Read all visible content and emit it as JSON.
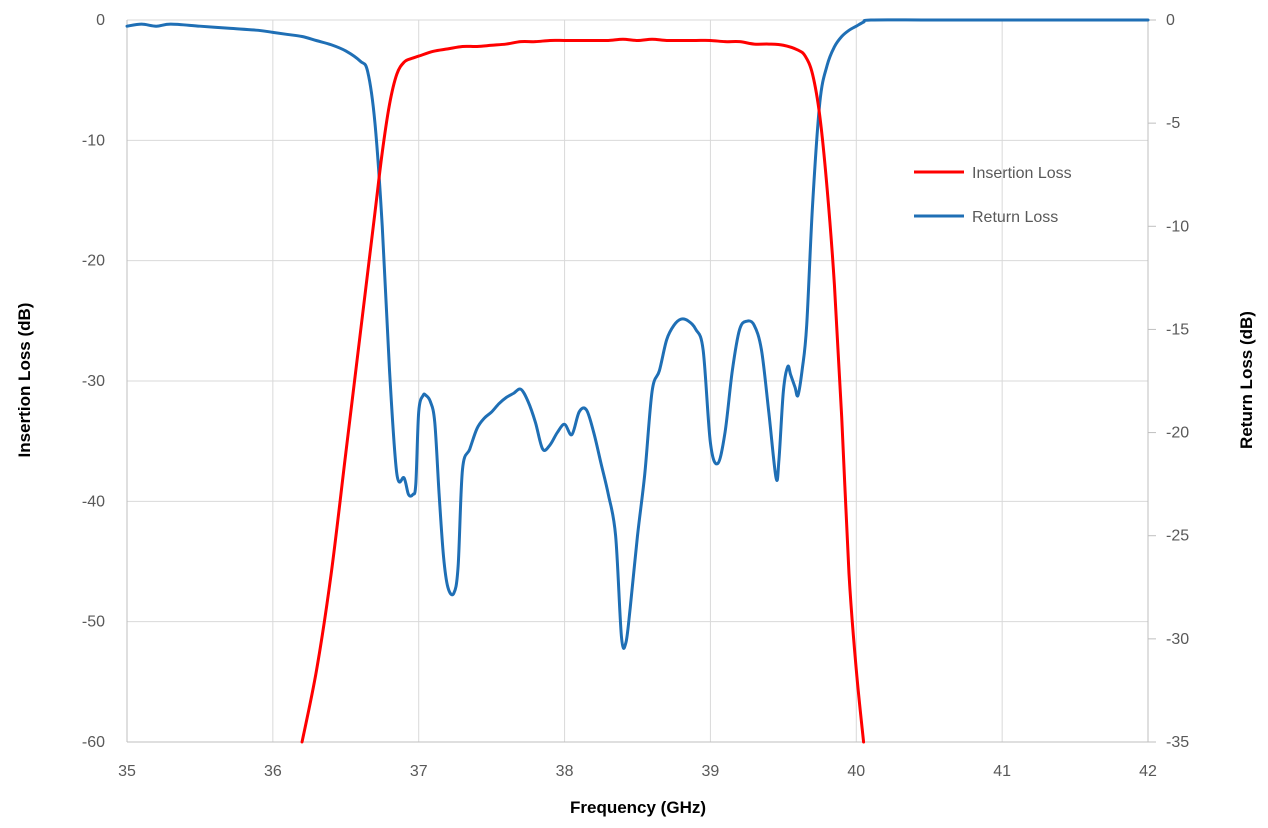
{
  "chart_data": {
    "type": "line",
    "title": "",
    "xlabel": "Frequency (GHz)",
    "ylabel": "Insertion Loss (dB)",
    "y2label": "Return Loss (dB)",
    "xlim": [
      35,
      42
    ],
    "ylim": [
      -60,
      0
    ],
    "y2lim": [
      -35,
      0
    ],
    "x_ticks": [
      "35",
      "36",
      "37",
      "38",
      "39",
      "40",
      "41",
      "42"
    ],
    "y_ticks": [
      "0",
      "-10",
      "-20",
      "-30",
      "-40",
      "-50",
      "-60"
    ],
    "y2_ticks": [
      "0",
      "-5",
      "-10",
      "-15",
      "-20",
      "-25",
      "-30",
      "-35"
    ],
    "grid": true,
    "legend_position": "right",
    "series": [
      {
        "name": "Insertion Loss",
        "axis": "left",
        "color": "#ff0000",
        "x": [
          36.2,
          36.3,
          36.4,
          36.5,
          36.6,
          36.7,
          36.75,
          36.8,
          36.85,
          36.9,
          36.95,
          37.0,
          37.1,
          37.2,
          37.3,
          37.4,
          37.5,
          37.6,
          37.7,
          37.8,
          37.9,
          38.0,
          38.1,
          38.2,
          38.3,
          38.4,
          38.5,
          38.6,
          38.7,
          38.8,
          38.9,
          39.0,
          39.1,
          39.2,
          39.3,
          39.4,
          39.5,
          39.6,
          39.65,
          39.7,
          39.75,
          39.8,
          39.85,
          39.9,
          39.95,
          40.0,
          40.05
        ],
        "values": [
          -60,
          -54,
          -46,
          -36,
          -26,
          -16,
          -11,
          -7,
          -4.5,
          -3.5,
          -3.2,
          -3.0,
          -2.6,
          -2.4,
          -2.2,
          -2.2,
          -2.1,
          -2.0,
          -1.8,
          -1.8,
          -1.7,
          -1.7,
          -1.7,
          -1.7,
          -1.7,
          -1.6,
          -1.7,
          -1.6,
          -1.7,
          -1.7,
          -1.7,
          -1.7,
          -1.8,
          -1.8,
          -2.0,
          -2.0,
          -2.1,
          -2.5,
          -3.0,
          -4.5,
          -8.0,
          -14.0,
          -22.0,
          -33.0,
          -46.0,
          -54.0,
          -60.0
        ]
      },
      {
        "name": "Return Loss",
        "axis": "right",
        "color": "#1f6fb5",
        "x": [
          35.0,
          35.1,
          35.2,
          35.3,
          35.5,
          35.7,
          35.9,
          36.0,
          36.1,
          36.2,
          36.3,
          36.4,
          36.5,
          36.6,
          36.65,
          36.7,
          36.75,
          36.8,
          36.85,
          36.9,
          36.93,
          36.96,
          36.98,
          37.0,
          37.03,
          37.05,
          37.08,
          37.11,
          37.14,
          37.17,
          37.2,
          37.24,
          37.27,
          37.3,
          37.35,
          37.4,
          37.45,
          37.5,
          37.55,
          37.6,
          37.65,
          37.7,
          37.75,
          37.8,
          37.85,
          37.9,
          37.95,
          38.0,
          38.05,
          38.1,
          38.15,
          38.2,
          38.25,
          38.3,
          38.35,
          38.39,
          38.42,
          38.45,
          38.5,
          38.55,
          38.6,
          38.65,
          38.7,
          38.75,
          38.8,
          38.85,
          38.9,
          38.95,
          39.0,
          39.05,
          39.1,
          39.15,
          39.2,
          39.25,
          39.3,
          39.35,
          39.4,
          39.45,
          39.47,
          39.5,
          39.53,
          39.55,
          39.58,
          39.6,
          39.63,
          39.66,
          39.7,
          39.75,
          39.8,
          39.85,
          39.9,
          39.95,
          40.0,
          40.05,
          40.1,
          40.5,
          41.0,
          41.5,
          42.0
        ],
        "values": [
          -0.3,
          -0.2,
          -0.3,
          -0.2,
          -0.3,
          -0.4,
          -0.5,
          -0.6,
          -0.7,
          -0.8,
          -1.0,
          -1.2,
          -1.5,
          -2.0,
          -2.5,
          -5.0,
          -10.0,
          -17.0,
          -22.0,
          -22.2,
          -23.0,
          -23.0,
          -22.5,
          -19.0,
          -18.2,
          -18.2,
          -18.5,
          -19.5,
          -23.0,
          -26.0,
          -27.5,
          -27.8,
          -26.5,
          -21.8,
          -20.8,
          -19.8,
          -19.3,
          -19.0,
          -18.6,
          -18.3,
          -18.1,
          -17.9,
          -18.5,
          -19.5,
          -20.8,
          -20.6,
          -20.0,
          -19.6,
          -20.1,
          -19.0,
          -18.9,
          -20.0,
          -21.5,
          -23.0,
          -25.0,
          -29.9,
          -30.2,
          -28.5,
          -25.0,
          -22.0,
          -18.0,
          -17.0,
          -15.5,
          -14.8,
          -14.5,
          -14.6,
          -15.0,
          -16.0,
          -20.5,
          -21.5,
          -20.0,
          -17.0,
          -15.0,
          -14.6,
          -14.8,
          -16.0,
          -19.0,
          -22.2,
          -21.3,
          -18.0,
          -16.8,
          -17.2,
          -17.8,
          -18.2,
          -16.9,
          -14.8,
          -9.0,
          -4.0,
          -2.2,
          -1.3,
          -0.8,
          -0.5,
          -0.3,
          -0.1,
          0.0,
          0.0,
          0.0,
          0.0,
          0.0
        ]
      }
    ]
  }
}
